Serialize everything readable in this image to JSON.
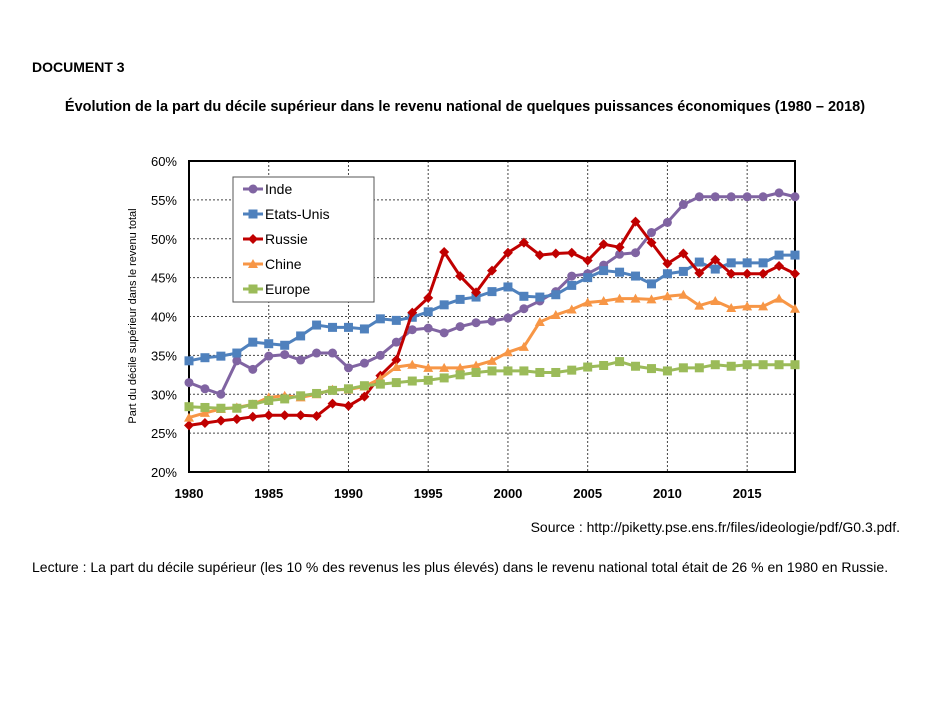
{
  "document": {
    "label": "DOCUMENT 3",
    "title": "Évolution de la part du décile supérieur dans le revenu national de quelques puissances économiques (1980 – 2018)",
    "source": "Source : http://piketty.pse.ens.fr/files/ideologie/pdf/G0.3.pdf.",
    "lecture": "Lecture : La part du décile supérieur (les 10 % des revenus les plus élevés) dans le revenu national total était de 26 % en 1980 en Russie."
  },
  "chart_data": {
    "type": "line",
    "title": "",
    "xlabel": "",
    "ylabel": "Part du décile supérieur dans le revenu total",
    "xlim": [
      1980,
      2018
    ],
    "ylim": [
      20,
      60
    ],
    "x_ticks": [
      1980,
      1985,
      1990,
      1995,
      2000,
      2005,
      2010,
      2015
    ],
    "y_ticks": [
      20,
      25,
      30,
      35,
      40,
      45,
      50,
      55,
      60
    ],
    "y_tick_labels": [
      "20%",
      "25%",
      "30%",
      "35%",
      "40%",
      "45%",
      "50%",
      "55%",
      "60%"
    ],
    "grid": true,
    "legend_position": "top-left",
    "x": [
      1980,
      1981,
      1982,
      1983,
      1984,
      1985,
      1986,
      1987,
      1988,
      1989,
      1990,
      1991,
      1992,
      1993,
      1994,
      1995,
      1996,
      1997,
      1998,
      1999,
      2000,
      2001,
      2002,
      2003,
      2004,
      2005,
      2006,
      2007,
      2008,
      2009,
      2010,
      2011,
      2012,
      2013,
      2014,
      2015,
      2016,
      2017,
      2018
    ],
    "series": [
      {
        "name": "Inde",
        "color": "#8064a2",
        "marker": "circle",
        "values": [
          31.5,
          30.7,
          30.0,
          34.3,
          33.2,
          34.9,
          35.1,
          34.4,
          35.3,
          35.3,
          33.4,
          34.0,
          35.0,
          36.7,
          38.3,
          38.5,
          37.9,
          38.7,
          39.2,
          39.4,
          39.8,
          41.0,
          42.0,
          43.2,
          45.2,
          45.5,
          46.6,
          48.0,
          48.2,
          50.8,
          52.1,
          54.4,
          55.4,
          55.4,
          55.4,
          55.4,
          55.4,
          55.9,
          55.4
        ]
      },
      {
        "name": "Etats-Unis",
        "color": "#4f81bd",
        "marker": "square",
        "values": [
          34.3,
          34.7,
          34.9,
          35.3,
          36.7,
          36.5,
          36.3,
          37.5,
          38.9,
          38.6,
          38.6,
          38.4,
          39.7,
          39.5,
          39.9,
          40.6,
          41.5,
          42.2,
          42.5,
          43.2,
          43.8,
          42.6,
          42.5,
          42.8,
          44.0,
          45.0,
          45.9,
          45.7,
          45.2,
          44.2,
          45.5,
          45.8,
          47.0,
          46.1,
          46.9,
          46.9,
          46.9,
          47.9,
          47.9
        ]
      },
      {
        "name": "Russie",
        "color": "#c00000",
        "marker": "diamond",
        "values": [
          26.0,
          26.3,
          26.6,
          26.8,
          27.1,
          27.3,
          27.3,
          27.3,
          27.2,
          28.8,
          28.5,
          29.7,
          32.4,
          34.4,
          40.5,
          42.4,
          48.3,
          45.2,
          43.1,
          45.9,
          48.2,
          49.5,
          47.9,
          48.1,
          48.2,
          47.2,
          49.3,
          48.9,
          52.2,
          49.5,
          46.8,
          48.1,
          45.6,
          47.3,
          45.5,
          45.5,
          45.5,
          46.5,
          45.5
        ]
      },
      {
        "name": "Chine",
        "color": "#f79646",
        "marker": "triangle",
        "values": [
          27.0,
          27.6,
          28.1,
          28.3,
          28.7,
          29.6,
          29.8,
          29.6,
          30.0,
          30.6,
          30.6,
          31.0,
          32.0,
          33.5,
          33.8,
          33.4,
          33.4,
          33.4,
          33.7,
          34.3,
          35.4,
          36.1,
          39.3,
          40.2,
          40.9,
          41.8,
          42.0,
          42.3,
          42.3,
          42.2,
          42.6,
          42.8,
          41.4,
          42.0,
          41.1,
          41.3,
          41.3,
          42.3,
          41.0
        ]
      },
      {
        "name": "Europe",
        "color": "#9bbb59",
        "marker": "square",
        "values": [
          28.4,
          28.3,
          28.2,
          28.2,
          28.7,
          29.2,
          29.4,
          29.8,
          30.1,
          30.5,
          30.7,
          31.1,
          31.3,
          31.5,
          31.7,
          31.8,
          32.1,
          32.5,
          32.8,
          33.0,
          33.0,
          33.0,
          32.8,
          32.8,
          33.1,
          33.5,
          33.7,
          34.2,
          33.6,
          33.3,
          33.0,
          33.4,
          33.4,
          33.8,
          33.6,
          33.8,
          33.8,
          33.8,
          33.8
        ]
      }
    ]
  }
}
